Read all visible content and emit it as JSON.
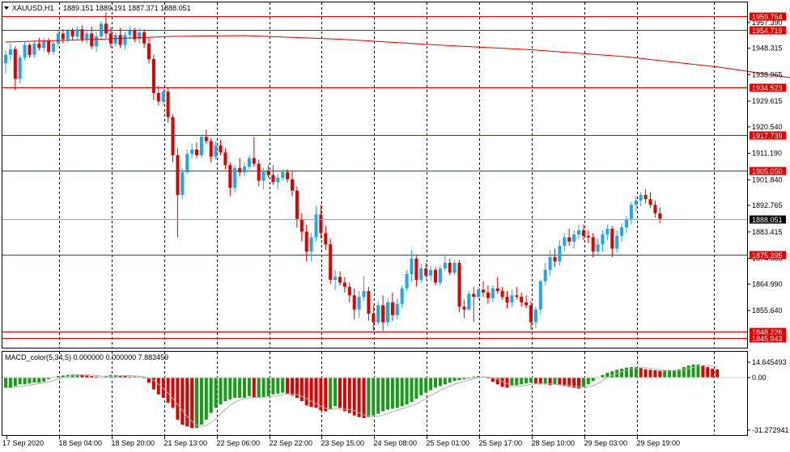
{
  "chart_data": [
    {
      "type": "candlestick",
      "header": {
        "symbol": "XAUUSD,H1",
        "ohlc": "1889.151 1889.191 1887.371 1888.051"
      },
      "ylim": [
        1842.5,
        1964.5
      ],
      "y_ticks": [
        "1957.390",
        "1948.315",
        "1938.965",
        "1929.615",
        "1920.540",
        "1911.190",
        "1901.840",
        "1892.765",
        "1883.415",
        "1874.065",
        "1864.990",
        "1855.640"
      ],
      "y_tick_values": [
        1957.39,
        1948.315,
        1938.965,
        1929.615,
        1920.54,
        1911.19,
        1901.84,
        1892.765,
        1883.415,
        1874.065,
        1864.99,
        1855.64
      ],
      "current_price": "1888.051",
      "current_price_value": 1888.051,
      "horizontal_lines": [
        {
          "label": "1959.764",
          "value": 1959.764
        },
        {
          "label": "1954.719",
          "value": 1954.719
        },
        {
          "label": "1934.523",
          "value": 1934.523
        },
        {
          "label": "1917.739",
          "value": 1917.739
        },
        {
          "label": "1905.050",
          "value": 1905.05
        },
        {
          "label": "1875.395",
          "value": 1875.395
        },
        {
          "label": "1848.226",
          "value": 1848.226
        },
        {
          "label": "1845.943",
          "value": 1845.943
        }
      ],
      "moving_average_path": [
        [
          0,
          1950.5
        ],
        [
          20,
          1951.5
        ],
        [
          35,
          1952.5
        ],
        [
          50,
          1952.8
        ],
        [
          70,
          1951.5
        ],
        [
          90,
          1949.5
        ],
        [
          110,
          1947.8
        ],
        [
          130,
          1945.3
        ],
        [
          150,
          1941.5
        ],
        [
          170,
          1936.5
        ],
        [
          190,
          1930.5
        ],
        [
          210,
          1924.5
        ],
        [
          230,
          1918.5
        ],
        [
          250,
          1912.5
        ],
        [
          270,
          1906.5
        ],
        [
          290,
          1900.5
        ],
        [
          310,
          1895.2
        ],
        [
          330,
          1891.5
        ],
        [
          340,
          1890
        ]
      ],
      "candles": [
        [
          1943,
          1947.5,
          1939.5,
          1946
        ],
        [
          1946,
          1950,
          1944,
          1948
        ],
        [
          1948,
          1949,
          1933.5,
          1937.5
        ],
        [
          1937.5,
          1946,
          1936,
          1945
        ],
        [
          1945,
          1950.5,
          1944,
          1949.5
        ],
        [
          1949.5,
          1950,
          1945,
          1946
        ],
        [
          1946,
          1951,
          1945,
          1950
        ],
        [
          1950,
          1952,
          1947.5,
          1948.5
        ],
        [
          1948.5,
          1952,
          1947,
          1951
        ],
        [
          1951,
          1952,
          1946,
          1947
        ],
        [
          1947,
          1951,
          1946,
          1950
        ],
        [
          1950,
          1954.5,
          1949,
          1953.5
        ],
        [
          1953.5,
          1955,
          1950,
          1951.5
        ],
        [
          1951.5,
          1955,
          1950.5,
          1954.5
        ],
        [
          1954.5,
          1955.5,
          1951,
          1952.5
        ],
        [
          1952.5,
          1956,
          1951.5,
          1955
        ],
        [
          1955,
          1956.5,
          1950.5,
          1951.5
        ],
        [
          1951.5,
          1954.5,
          1950,
          1953.5
        ],
        [
          1953.5,
          1956,
          1948,
          1949
        ],
        [
          1949,
          1954,
          1947,
          1952.5
        ],
        [
          1952.5,
          1958,
          1951.5,
          1957
        ],
        [
          1957,
          1961,
          1952,
          1953.5
        ],
        [
          1953.5,
          1955.5,
          1948.5,
          1950
        ],
        [
          1950,
          1954,
          1949,
          1953
        ],
        [
          1953,
          1955.5,
          1948.5,
          1949.5
        ],
        [
          1949.5,
          1954,
          1948,
          1953
        ],
        [
          1953,
          1956,
          1951.5,
          1954.5
        ],
        [
          1954.5,
          1955.5,
          1950.5,
          1951.5
        ],
        [
          1951.5,
          1955.5,
          1950,
          1954
        ],
        [
          1954,
          1955,
          1948.5,
          1950
        ],
        [
          1950,
          1952,
          1943,
          1944.5
        ],
        [
          1944.5,
          1946,
          1930,
          1932.5
        ],
        [
          1932.5,
          1935,
          1928,
          1929.5
        ],
        [
          1929.5,
          1934,
          1928,
          1933
        ],
        [
          1933,
          1934.5,
          1922,
          1924
        ],
        [
          1924,
          1925,
          1908,
          1910.5
        ],
        [
          1910.5,
          1913,
          1881.5,
          1896.5
        ],
        [
          1896.5,
          1906,
          1895,
          1904.5
        ],
        [
          1904.5,
          1912.5,
          1904,
          1911
        ],
        [
          1911,
          1914.5,
          1909.5,
          1912.5
        ],
        [
          1912.5,
          1915,
          1909.5,
          1910.5
        ],
        [
          1910.5,
          1918,
          1909.5,
          1917
        ],
        [
          1917,
          1919.5,
          1914.5,
          1915.5
        ],
        [
          1915.5,
          1916.5,
          1908,
          1910
        ],
        [
          1910,
          1915.5,
          1909,
          1914
        ],
        [
          1914,
          1916,
          1910.5,
          1911.5
        ],
        [
          1911.5,
          1913,
          1905.5,
          1907
        ],
        [
          1907,
          1908,
          1896,
          1899
        ],
        [
          1899,
          1907,
          1897.5,
          1906
        ],
        [
          1906,
          1909.5,
          1903,
          1904.5
        ],
        [
          1904.5,
          1908,
          1903,
          1906.5
        ],
        [
          1906.5,
          1910.5,
          1905.5,
          1909.5
        ],
        [
          1909.5,
          1917,
          1906.5,
          1907.5
        ],
        [
          1907.5,
          1909,
          1899.5,
          1901.5
        ],
        [
          1901.5,
          1906,
          1898.5,
          1905
        ],
        [
          1905,
          1907,
          1902.5,
          1903.5
        ],
        [
          1903.5,
          1907,
          1900,
          1901
        ],
        [
          1901,
          1904,
          1898.5,
          1902.5
        ],
        [
          1902.5,
          1905.5,
          1901.5,
          1904.5
        ],
        [
          1904.5,
          1905.5,
          1901,
          1902
        ],
        [
          1902,
          1905,
          1896,
          1898
        ],
        [
          1898,
          1899.5,
          1885,
          1888
        ],
        [
          1888,
          1890,
          1880,
          1883.5
        ],
        [
          1883.5,
          1886,
          1873,
          1876.5
        ],
        [
          1876.5,
          1883,
          1873,
          1881.5
        ],
        [
          1881.5,
          1892.5,
          1880,
          1889.5
        ],
        [
          1889.5,
          1893,
          1881,
          1883
        ],
        [
          1883,
          1885.5,
          1877,
          1879
        ],
        [
          1879,
          1881,
          1865,
          1866.5
        ],
        [
          1866.5,
          1870,
          1863,
          1867.5
        ],
        [
          1867.5,
          1869.5,
          1864.5,
          1865.5
        ],
        [
          1865.5,
          1867.5,
          1862,
          1864
        ],
        [
          1864,
          1865.5,
          1858.5,
          1861
        ],
        [
          1861,
          1863.5,
          1852.5,
          1856
        ],
        [
          1856,
          1862.5,
          1853,
          1860.5
        ],
        [
          1860.5,
          1868,
          1859,
          1862.5
        ],
        [
          1862.5,
          1864,
          1852,
          1854.5
        ],
        [
          1854.5,
          1857.5,
          1848.5,
          1851.5
        ],
        [
          1851.5,
          1859,
          1850.5,
          1857.5
        ],
        [
          1857.5,
          1861,
          1848.5,
          1851.5
        ],
        [
          1851.5,
          1860,
          1850,
          1858.5
        ],
        [
          1858.5,
          1862,
          1852,
          1854
        ],
        [
          1854,
          1860,
          1852.5,
          1858
        ],
        [
          1858,
          1864.5,
          1856.5,
          1863.5
        ],
        [
          1863.5,
          1870,
          1862.5,
          1868.5
        ],
        [
          1868.5,
          1877,
          1866,
          1874
        ],
        [
          1874,
          1875,
          1864,
          1866.5
        ],
        [
          1866.5,
          1872,
          1865.5,
          1870.5
        ],
        [
          1870.5,
          1872.5,
          1867,
          1868
        ],
        [
          1868,
          1871.5,
          1866,
          1870
        ],
        [
          1870,
          1871,
          1864.5,
          1865.5
        ],
        [
          1865.5,
          1871.5,
          1864.5,
          1870.5
        ],
        [
          1870.5,
          1875,
          1869.5,
          1872.5
        ],
        [
          1872.5,
          1874,
          1868,
          1869
        ],
        [
          1869,
          1873.5,
          1868,
          1872.5
        ],
        [
          1872.5,
          1873.5,
          1855,
          1857
        ],
        [
          1857,
          1859.5,
          1853,
          1856
        ],
        [
          1856,
          1862.5,
          1855.5,
          1861.5
        ],
        [
          1861.5,
          1864,
          1851.5,
          1860.5
        ],
        [
          1860.5,
          1864,
          1859.5,
          1863
        ],
        [
          1863,
          1866,
          1860.5,
          1862
        ],
        [
          1862,
          1864.5,
          1858,
          1860
        ],
        [
          1860,
          1864.5,
          1858.5,
          1863.5
        ],
        [
          1863.5,
          1867.5,
          1861.5,
          1862.5
        ],
        [
          1862.5,
          1864,
          1859.5,
          1860.5
        ],
        [
          1860.5,
          1862.5,
          1856.5,
          1858.5
        ],
        [
          1858.5,
          1863,
          1857,
          1861
        ],
        [
          1861,
          1864,
          1859.5,
          1860.5
        ],
        [
          1860.5,
          1862,
          1857,
          1858.5
        ],
        [
          1858.5,
          1861,
          1856.5,
          1857.5
        ],
        [
          1857.5,
          1859,
          1849,
          1851.5
        ],
        [
          1851.5,
          1857,
          1849.5,
          1856
        ],
        [
          1856,
          1866.5,
          1854,
          1866
        ],
        [
          1866,
          1872.5,
          1864.5,
          1870
        ],
        [
          1870,
          1877,
          1868,
          1874.5
        ],
        [
          1874.5,
          1877.5,
          1871,
          1873
        ],
        [
          1873,
          1880.5,
          1871.5,
          1878.5
        ],
        [
          1878.5,
          1883,
          1876.5,
          1881.5
        ],
        [
          1881.5,
          1884.5,
          1878.5,
          1880
        ],
        [
          1880,
          1884,
          1877.5,
          1882.5
        ],
        [
          1882.5,
          1886,
          1881,
          1884
        ],
        [
          1884,
          1886,
          1880.5,
          1882
        ],
        [
          1882,
          1884,
          1879.5,
          1881.5
        ],
        [
          1881.5,
          1883,
          1874.5,
          1876.5
        ],
        [
          1876.5,
          1881,
          1875.5,
          1879
        ],
        [
          1879,
          1884,
          1876.5,
          1882.5
        ],
        [
          1882.5,
          1886,
          1880.5,
          1884.5
        ],
        [
          1884.5,
          1885.5,
          1874.5,
          1877.5
        ],
        [
          1877.5,
          1884,
          1876,
          1882
        ],
        [
          1882,
          1886.5,
          1880,
          1885
        ],
        [
          1885,
          1889,
          1883,
          1888
        ],
        [
          1888,
          1894,
          1886,
          1893
        ],
        [
          1893,
          1896,
          1890.5,
          1894.5
        ],
        [
          1894.5,
          1897.5,
          1892.5,
          1896.5
        ],
        [
          1896.5,
          1898.5,
          1893.5,
          1895
        ],
        [
          1895,
          1897.5,
          1892,
          1893
        ],
        [
          1893,
          1894.5,
          1888.5,
          1890
        ],
        [
          1890,
          1892,
          1886.5,
          1888.051
        ]
      ],
      "x_ticks": [
        "17 Sep 2020",
        "18 Sep 04:00",
        "18 Sep 20:00",
        "21 Sep 13:00",
        "22 Sep 06:00",
        "22 Sep 22:00",
        "23 Sep 15:00",
        "24 Sep 08:00",
        "25 Sep 01:00",
        "25 Sep 17:00",
        "28 Sep 10:00",
        "29 Sep 03:00",
        "29 Sep 19:00"
      ],
      "grid": true
    },
    {
      "type": "histogram",
      "header": "MACD_color(5,34,5) 0.000000 0.000000 7.883459",
      "ylim": [
        -31.272941,
        14.645493
      ],
      "y_ticks": [
        "14.645493",
        "0.00",
        "-31.272941"
      ],
      "y_tick_values": [
        14.645493,
        0,
        -31.272941
      ],
      "values": [
        -6,
        -6,
        -5,
        -4,
        -4,
        -3.5,
        -3,
        -3,
        -2.5,
        -1,
        0.5,
        1.5,
        2,
        2.5,
        3,
        3,
        2.5,
        2,
        1.5,
        1,
        0.5,
        1.5,
        2.5,
        2.5,
        2,
        1.5,
        1,
        1,
        0.5,
        -0.5,
        -3,
        -7,
        -10,
        -12,
        -15,
        -18,
        -25,
        -28,
        -29,
        -30,
        -30,
        -28,
        -25,
        -21,
        -18,
        -16,
        -14,
        -13,
        -12,
        -12,
        -12,
        -11,
        -12,
        -12,
        -11.5,
        -11,
        -10,
        -9.5,
        -9,
        -9.5,
        -10.5,
        -12,
        -14,
        -16.5,
        -17.5,
        -18,
        -19.5,
        -20,
        -19,
        -17,
        -18,
        -20,
        -21,
        -22.5,
        -23.5,
        -24,
        -23.5,
        -22.5,
        -21.5,
        -20,
        -19,
        -18.5,
        -18,
        -17,
        -16,
        -14.5,
        -12.5,
        -10.5,
        -9,
        -7.5,
        -6,
        -5,
        -4,
        -3,
        -2,
        -1.5,
        -1,
        0,
        1,
        1.5,
        1,
        -0.5,
        -2.5,
        -4,
        -5.5,
        -6,
        -5,
        -4.5,
        -4,
        -3.5,
        -3,
        -3.5,
        -4,
        -4,
        -4.5,
        -4,
        -4.5,
        -5,
        -5.5,
        -6,
        -6.5,
        -5.5,
        -4,
        -2,
        0.5,
        2.5,
        4.5,
        6,
        7.5,
        8.5,
        9.5,
        10,
        10,
        9,
        8,
        7.5,
        7,
        6.5,
        6.5,
        7,
        7,
        8,
        10,
        11.5,
        12.5,
        12.5,
        11.5,
        10,
        8.5,
        7.883459
      ],
      "grid": true
    }
  ]
}
